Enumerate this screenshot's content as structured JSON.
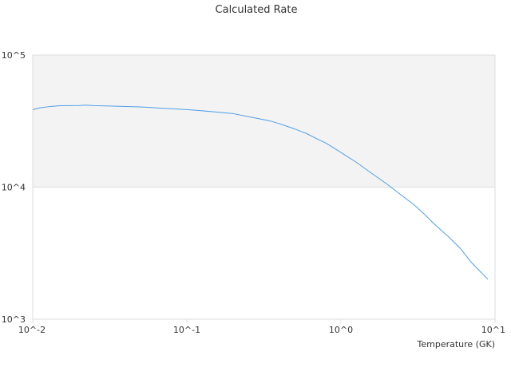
{
  "chart_data": {
    "type": "line",
    "title": "Calculated Rate",
    "xlabel": "Temperature (GK)",
    "ylabel": "",
    "x_scale": "log",
    "y_scale": "log",
    "xlim": [
      0.01,
      10
    ],
    "ylim": [
      1000,
      100000
    ],
    "x_ticks": [
      {
        "value": 0.01,
        "label": "10^-2"
      },
      {
        "value": 0.1,
        "label": "10^-1"
      },
      {
        "value": 1,
        "label": "10^0"
      },
      {
        "value": 10,
        "label": "10^1"
      }
    ],
    "y_ticks": [
      {
        "value": 1000,
        "label": "10^3"
      },
      {
        "value": 10000,
        "label": "10^4"
      },
      {
        "value": 100000,
        "label": "10^5"
      }
    ],
    "grid": false,
    "legend": "none",
    "band_colors": [
      "#f3f3f3",
      "#ffffff"
    ],
    "axis_color": "#dddddd",
    "series": [
      {
        "color": "#4f9ee8",
        "x": [
          0.01,
          0.011,
          0.013,
          0.015,
          0.02,
          0.022,
          0.025,
          0.03,
          0.035,
          0.04,
          0.05,
          0.06,
          0.07,
          0.08,
          0.09,
          0.1,
          0.12,
          0.15,
          0.2,
          0.25,
          0.3,
          0.35,
          0.4,
          0.45,
          0.5,
          0.6,
          0.7,
          0.8,
          0.9,
          1.0,
          1.25,
          1.5,
          2.0,
          2.5,
          3.0,
          3.5,
          4.0,
          5.0,
          6.0,
          7.0,
          8.0,
          9.0
        ],
        "y": [
          38500,
          39800,
          40800,
          41300,
          41500,
          41800,
          41400,
          41200,
          41000,
          40800,
          40500,
          40000,
          39500,
          39200,
          38900,
          38600,
          38000,
          37200,
          36000,
          34200,
          32800,
          31600,
          30200,
          28800,
          27600,
          25400,
          23200,
          21500,
          19800,
          18300,
          15500,
          13300,
          10500,
          8600,
          7300,
          6200,
          5300,
          4200,
          3400,
          2700,
          2300,
          2000
        ]
      }
    ]
  }
}
